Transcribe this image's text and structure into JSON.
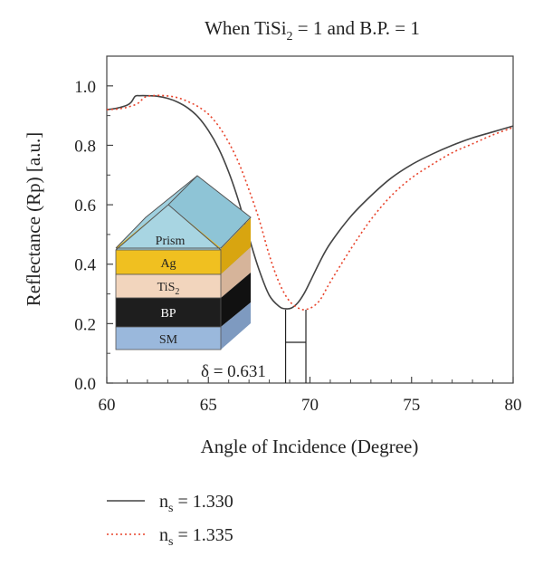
{
  "chart_data": {
    "type": "line",
    "title": "When TiSi",
    "title_sub": "2",
    "title_rest": " = 1 and B.P. = 1",
    "xlabel": "Angle of Incidence (Degree)",
    "ylabel": "Reflectance (Rp) [a.u.]",
    "xlim": [
      60,
      80
    ],
    "ylim": [
      0,
      1.1
    ],
    "xticks": [
      60,
      65,
      70,
      75,
      80
    ],
    "xtick_labels": [
      "60",
      "65",
      "70",
      "75",
      "80"
    ],
    "yticks": [
      0.0,
      0.2,
      0.4,
      0.6,
      0.8,
      1.0
    ],
    "ytick_labels": [
      "0.0",
      "0.2",
      "0.4",
      "0.6",
      "0.8",
      "1.0"
    ],
    "grid": false,
    "legend_position": "below",
    "series": [
      {
        "name": "n",
        "name_sub": "s",
        "name_rest": " = 1.330",
        "color": "#444444",
        "style": "solid",
        "x": [
          60,
          60.5,
          61,
          61.2,
          61.4,
          61.6,
          62,
          62.5,
          63,
          63.5,
          64,
          64.5,
          65,
          65.5,
          66,
          66.5,
          67,
          67.5,
          68,
          68.5,
          68.8,
          69.1,
          69.4,
          69.7,
          70,
          70.5,
          71,
          72,
          73,
          74,
          75,
          76,
          77,
          78,
          79,
          80
        ],
        "y": [
          0.92,
          0.925,
          0.935,
          0.945,
          0.965,
          0.967,
          0.967,
          0.965,
          0.958,
          0.945,
          0.925,
          0.895,
          0.85,
          0.79,
          0.71,
          0.61,
          0.49,
          0.38,
          0.295,
          0.257,
          0.25,
          0.253,
          0.27,
          0.3,
          0.34,
          0.41,
          0.47,
          0.56,
          0.63,
          0.69,
          0.735,
          0.77,
          0.8,
          0.825,
          0.845,
          0.865
        ]
      },
      {
        "name": "n",
        "name_sub": "s",
        "name_rest": " = 1.335",
        "color": "#e8442c",
        "style": "dotted",
        "x": [
          60,
          60.5,
          61,
          61.5,
          61.8,
          62,
          62.5,
          63,
          63.5,
          64,
          64.5,
          65,
          65.5,
          66,
          66.5,
          67,
          67.5,
          68,
          68.5,
          69,
          69.5,
          69.8,
          70.1,
          70.5,
          71,
          72,
          73,
          74,
          75,
          76,
          77,
          78,
          79,
          80
        ],
        "y": [
          0.92,
          0.922,
          0.928,
          0.94,
          0.958,
          0.965,
          0.968,
          0.966,
          0.96,
          0.947,
          0.93,
          0.905,
          0.865,
          0.81,
          0.74,
          0.65,
          0.55,
          0.43,
          0.335,
          0.275,
          0.25,
          0.248,
          0.255,
          0.28,
          0.34,
          0.45,
          0.55,
          0.63,
          0.69,
          0.735,
          0.775,
          0.805,
          0.835,
          0.86
        ]
      }
    ],
    "annotation": {
      "label": "δ = 0.631"
    },
    "inset": {
      "layers": [
        {
          "label": "Prism",
          "color": "#a8d5e2"
        },
        {
          "label": "Ag",
          "color": "#f0c020"
        },
        {
          "label": "TiS",
          "label_sub": "2",
          "color": "#f2d5bd"
        },
        {
          "label": "BP",
          "label_text_color": "#ffffff",
          "color": "#1e1e1e"
        },
        {
          "label": "SM",
          "color": "#9ab8dc"
        }
      ]
    }
  }
}
